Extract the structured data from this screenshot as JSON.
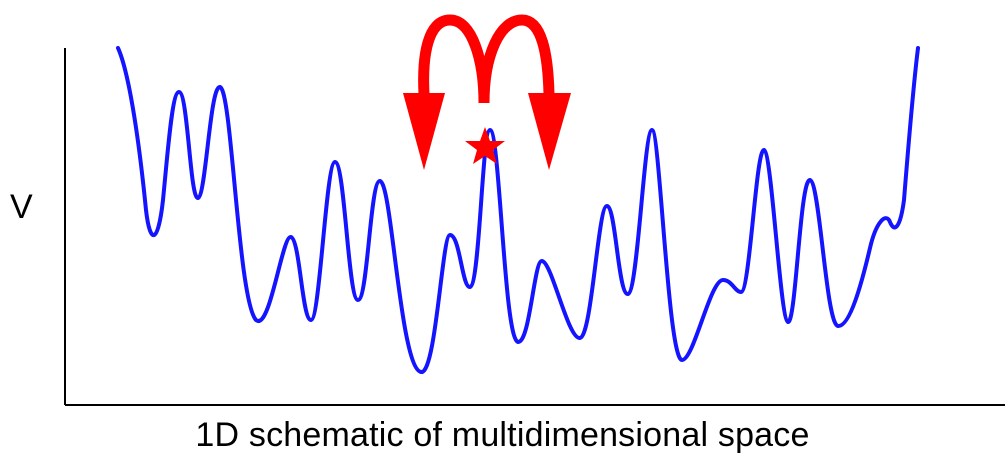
{
  "diagram": {
    "y_axis_label": "V",
    "x_axis_label": "1D schematic of multidimensional space",
    "colors": {
      "curve": "#1414ff",
      "arrows": "#ff0000",
      "star": "#ff0000",
      "axes": "#000000"
    },
    "icons": {
      "hop_arrows": "curved-arrow-pair-icon",
      "state_marker": "star-icon"
    }
  }
}
